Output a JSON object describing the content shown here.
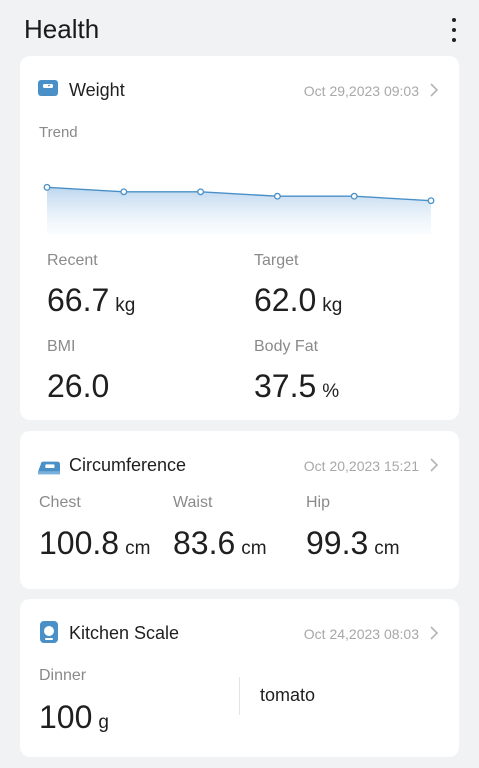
{
  "header": {
    "title": "Health"
  },
  "colors": {
    "accent": "#4a90c8",
    "label": "#8a8a8a",
    "date": "#a8a8a8"
  },
  "weight": {
    "title": "Weight",
    "date": "Oct 29,2023 09:03",
    "trend_label": "Trend",
    "trend_values": [
      66.9,
      66.8,
      66.8,
      66.7,
      66.7,
      66.6
    ],
    "recent_label": "Recent",
    "recent_value": "66.7",
    "recent_unit": "kg",
    "target_label": "Target",
    "target_value": "62.0",
    "target_unit": "kg",
    "bmi_label": "BMI",
    "bmi_value": "26.0",
    "bodyfat_label": "Body Fat",
    "bodyfat_value": "37.5",
    "bodyfat_unit": "%"
  },
  "circumference": {
    "title": "Circumference",
    "date": "Oct 20,2023 15:21",
    "chest_label": "Chest",
    "chest_value": "100.8",
    "chest_unit": "cm",
    "waist_label": "Waist",
    "waist_value": "83.6",
    "waist_unit": "cm",
    "hip_label": "Hip",
    "hip_value": "99.3",
    "hip_unit": "cm"
  },
  "kitchen": {
    "title": "Kitchen Scale",
    "date": "Oct 24,2023 08:03",
    "meal_label": "Dinner",
    "meal_value": "100",
    "meal_unit": "g",
    "food": "tomato"
  }
}
